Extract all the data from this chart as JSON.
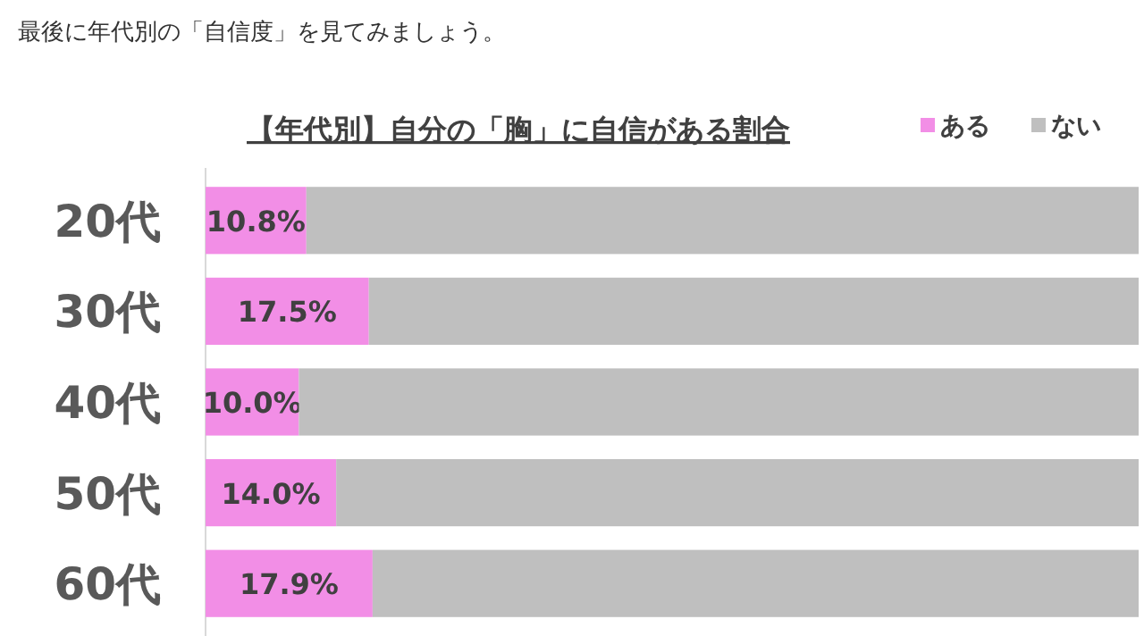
{
  "chart_data": {
    "type": "bar",
    "orientation": "horizontal",
    "stacked": true,
    "title": "【年代別】自分の「胸」に自信がある割合",
    "annotations": [
      "最後に年代別の「自信度」を見てみましょう。"
    ],
    "categories": [
      "20代",
      "30代",
      "40代",
      "50代",
      "60代"
    ],
    "xlim": [
      0,
      100
    ],
    "legend": "top right",
    "series": [
      {
        "name": "ある",
        "color": "#f28ee6",
        "values": [
          10.8,
          17.5,
          10.0,
          14.0,
          17.9
        ],
        "value_labels": [
          "10.8%",
          "17.5%",
          "10.0%",
          "14.0%",
          "17.9%"
        ]
      },
      {
        "name": "ない",
        "color": "#bfbfbf",
        "values": [
          89.2,
          82.5,
          90.0,
          86.0,
          82.1
        ]
      }
    ]
  }
}
